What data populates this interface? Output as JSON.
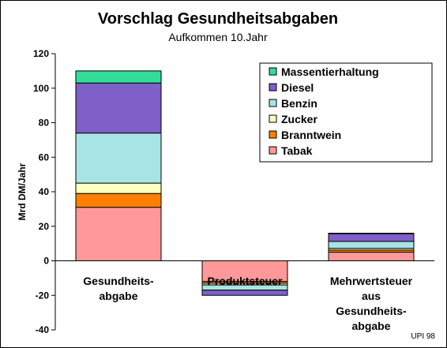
{
  "chart_data": {
    "type": "bar",
    "stacked": true,
    "title": "Vorschlag Gesundheitsabgaben",
    "subtitle": "Aufkommen 10.Jahr",
    "ylabel": "Mrd DM/Jahr",
    "xlabel": "",
    "ylim": [
      -40,
      120
    ],
    "yticks": [
      -40,
      -20,
      0,
      20,
      40,
      60,
      80,
      100,
      120
    ],
    "grid": false,
    "legend_position": "top-right",
    "categories": [
      [
        "Gesundheits-",
        "abgabe"
      ],
      [
        "Produktsteuer"
      ],
      [
        "Mehrwertsteuer",
        "aus",
        "Gesundheits-",
        "abgabe"
      ]
    ],
    "series": [
      {
        "name": "Tabak",
        "color": "#ff9999",
        "values": [
          31,
          -12,
          5
        ]
      },
      {
        "name": "Branntwein",
        "color": "#ff8000",
        "values": [
          8,
          -1,
          1.2
        ]
      },
      {
        "name": "Zucker",
        "color": "#ffffc0",
        "values": [
          6,
          -1,
          1
        ]
      },
      {
        "name": "Benzin",
        "color": "#a8e4e4",
        "values": [
          29,
          -3,
          4
        ]
      },
      {
        "name": "Diesel",
        "color": "#7f5fc8",
        "values": [
          29,
          -3,
          4.5
        ]
      },
      {
        "name": "Massentierhaltung",
        "color": "#33dd99",
        "values": [
          7,
          0,
          0.3
        ]
      }
    ],
    "source": "UPI 98"
  }
}
